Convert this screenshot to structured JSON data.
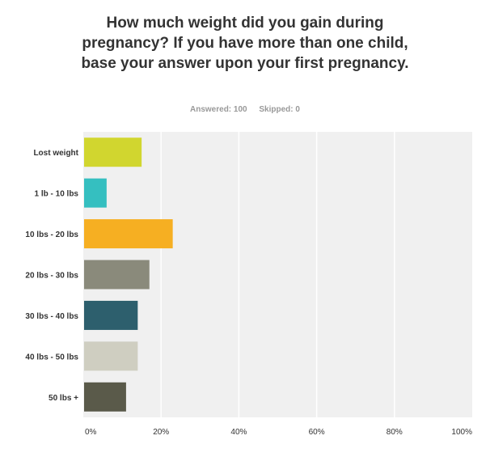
{
  "title": "How much weight did you gain during pregnancy? If you have more than one child, base your answer upon your first pregnancy.",
  "stats": {
    "answered": "Answered: 100",
    "skipped": "Skipped: 0"
  },
  "chart_data": {
    "type": "bar",
    "orientation": "horizontal",
    "title": "How much weight did you gain during pregnancy? If you have more than one child, base your answer upon your first pregnancy.",
    "categories": [
      "Lost weight",
      "1 lb - 10 lbs",
      "10 lbs - 20 lbs",
      "20 lbs - 30 lbs",
      "30 lbs - 40 lbs",
      "40 lbs - 50 lbs",
      "50 lbs +"
    ],
    "values": [
      15,
      6,
      23,
      17,
      14,
      14,
      11
    ],
    "colors": [
      "#d1d62f",
      "#35bfc0",
      "#f6af22",
      "#8a8a7b",
      "#2d5f6d",
      "#cfcec1",
      "#5a5a4a"
    ],
    "xlim": [
      0,
      100
    ],
    "xticks": [
      "0%",
      "20%",
      "40%",
      "60%",
      "80%",
      "100%"
    ],
    "tick_values": [
      0,
      20,
      40,
      60,
      80,
      100
    ],
    "grid": true,
    "xlabel": "",
    "ylabel": "",
    "background": "#f0f0f0"
  }
}
